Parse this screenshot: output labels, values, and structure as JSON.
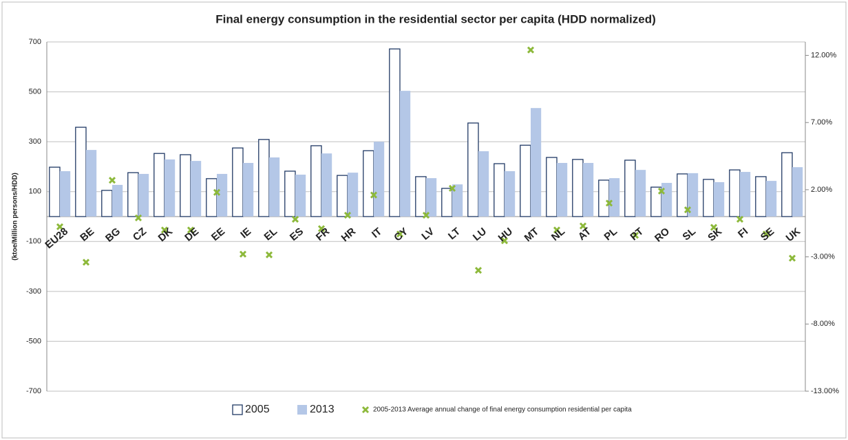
{
  "chart_data": {
    "type": "bar",
    "title": "Final energy consumption in the residential sector per capita (HDD normalized)",
    "y_label": "(ktoe/Million persons/HDD)",
    "categories": [
      "EU28",
      "BE",
      "BG",
      "CZ",
      "DK",
      "DE",
      "EE",
      "IE",
      "EL",
      "ES",
      "FR",
      "HR",
      "IT",
      "CY",
      "LV",
      "LT",
      "LU",
      "HU",
      "MT",
      "NL",
      "AT",
      "PL",
      "PT",
      "RO",
      "SL",
      "SK",
      "FI",
      "SE",
      "UK"
    ],
    "series": [
      {
        "name": "2005",
        "color": "#ffffff",
        "edge": "#1f3864",
        "values": [
          198,
          358,
          105,
          176,
          253,
          248,
          152,
          275,
          309,
          182,
          284,
          165,
          264,
          672,
          160,
          113,
          375,
          212,
          286,
          237,
          229,
          146,
          226,
          118,
          171,
          149,
          187,
          160,
          256
        ]
      },
      {
        "name": "2013",
        "color": "#b4c7e7",
        "values": [
          182,
          267,
          127,
          171,
          229,
          223,
          171,
          215,
          237,
          168,
          253,
          176,
          300,
          504,
          154,
          129,
          262,
          182,
          435,
          215,
          215,
          154,
          187,
          135,
          174,
          138,
          179,
          143,
          198
        ]
      },
      {
        "name": "2005-2013 Average annual change of final energy consumption residential per capita",
        "type": "scatter",
        "axis": "y2",
        "color": "#8db93b",
        "values": [
          -0.76,
          -3.4,
          2.7,
          -0.1,
          -1.0,
          -1.0,
          1.8,
          -2.8,
          -2.85,
          -0.2,
          -0.9,
          0.1,
          1.6,
          -1.3,
          0.1,
          2.1,
          -4.0,
          -1.8,
          12.4,
          -1.0,
          -0.7,
          1.0,
          -1.4,
          1.9,
          0.5,
          -0.8,
          -0.2,
          -1.3,
          -3.1
        ]
      }
    ],
    "ylim": [
      -700,
      700
    ],
    "yticks": [
      -700,
      -500,
      -300,
      -100,
      100,
      300,
      500,
      700
    ],
    "y2lim": [
      -13,
      13
    ],
    "y2ticks": [
      {
        "value": -13,
        "label": "-13.00%"
      },
      {
        "value": -8,
        "label": "-8.00%"
      },
      {
        "value": -3,
        "label": "-3.00%"
      },
      {
        "value": 2,
        "label": "2.00%"
      },
      {
        "value": 7,
        "label": "7.00%"
      },
      {
        "value": 12,
        "label": "12.00%"
      }
    ],
    "grid": true,
    "legend": "bottom"
  }
}
